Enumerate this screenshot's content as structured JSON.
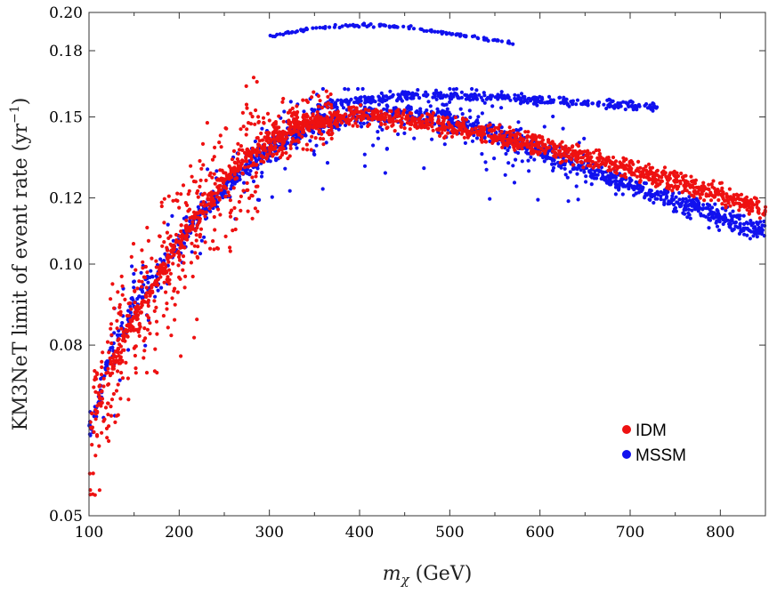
{
  "chart_data": {
    "type": "scatter",
    "title": "",
    "xlabel": "m_χ (GeV)",
    "ylabel": "KM3NeT limit of event rate (yr⁻¹)",
    "xlabel_parts": {
      "symbol": "m",
      "subscript": "χ",
      "unit": " (GeV)"
    },
    "ylabel_parts": {
      "text": "KM3NeT limit of event rate (yr",
      "superscript": "−1",
      "close": ")"
    },
    "xlim": [
      100,
      850
    ],
    "ylim": [
      0.05,
      0.2
    ],
    "yscale": "log",
    "x_ticks": [
      100,
      200,
      300,
      400,
      500,
      600,
      700,
      800
    ],
    "x_tick_labels": [
      "100",
      "200",
      "300",
      "400",
      "500",
      "600",
      "700",
      "800"
    ],
    "y_ticks": [
      0.05,
      0.08,
      0.1,
      0.12,
      0.15,
      0.18,
      0.2
    ],
    "y_tick_labels": [
      "0.05",
      "0.08",
      "0.10",
      "0.12",
      "0.15",
      "0.18",
      "0.20"
    ],
    "legend_position": "bottom-right",
    "series": [
      {
        "name": "IDM",
        "color": "#ee1111",
        "band": {
          "x": [
            100,
            110,
            130,
            160,
            200,
            250,
            300,
            350,
            400,
            450,
            500,
            600,
            700,
            800,
            850
          ],
          "y": [
            0.059,
            0.067,
            0.078,
            0.09,
            0.106,
            0.126,
            0.142,
            0.148,
            0.151,
            0.149,
            0.146,
            0.139,
            0.13,
            0.121,
            0.116
          ]
        },
        "scatter_cloud": {
          "x_range": [
            100,
            370
          ],
          "y_range": [
            0.068,
            0.18
          ]
        }
      },
      {
        "name": "MSSM",
        "color": "#1111ee",
        "band": {
          "x": [
            100,
            110,
            130,
            160,
            200,
            250,
            300,
            350,
            400,
            450,
            500,
            600,
            700,
            800,
            850
          ],
          "y": [
            0.062,
            0.069,
            0.082,
            0.093,
            0.107,
            0.123,
            0.137,
            0.147,
            0.151,
            0.151,
            0.149,
            0.137,
            0.124,
            0.114,
            0.109
          ]
        },
        "upper_branch": {
          "x": [
            350,
            400,
            450,
            500,
            550,
            600,
            650,
            700,
            730
          ],
          "y": [
            0.154,
            0.157,
            0.159,
            0.159,
            0.158,
            0.157,
            0.156,
            0.155,
            0.154
          ]
        },
        "top_arc": {
          "x": [
            300,
            330,
            360,
            390,
            420,
            450,
            480,
            510,
            540,
            570
          ],
          "y": [
            0.187,
            0.19,
            0.192,
            0.193,
            0.193,
            0.192,
            0.19,
            0.188,
            0.186,
            0.184
          ]
        },
        "scatter_cloud": {
          "x_range": [
            100,
            650
          ],
          "y_range": [
            0.075,
            0.16
          ]
        }
      }
    ]
  }
}
